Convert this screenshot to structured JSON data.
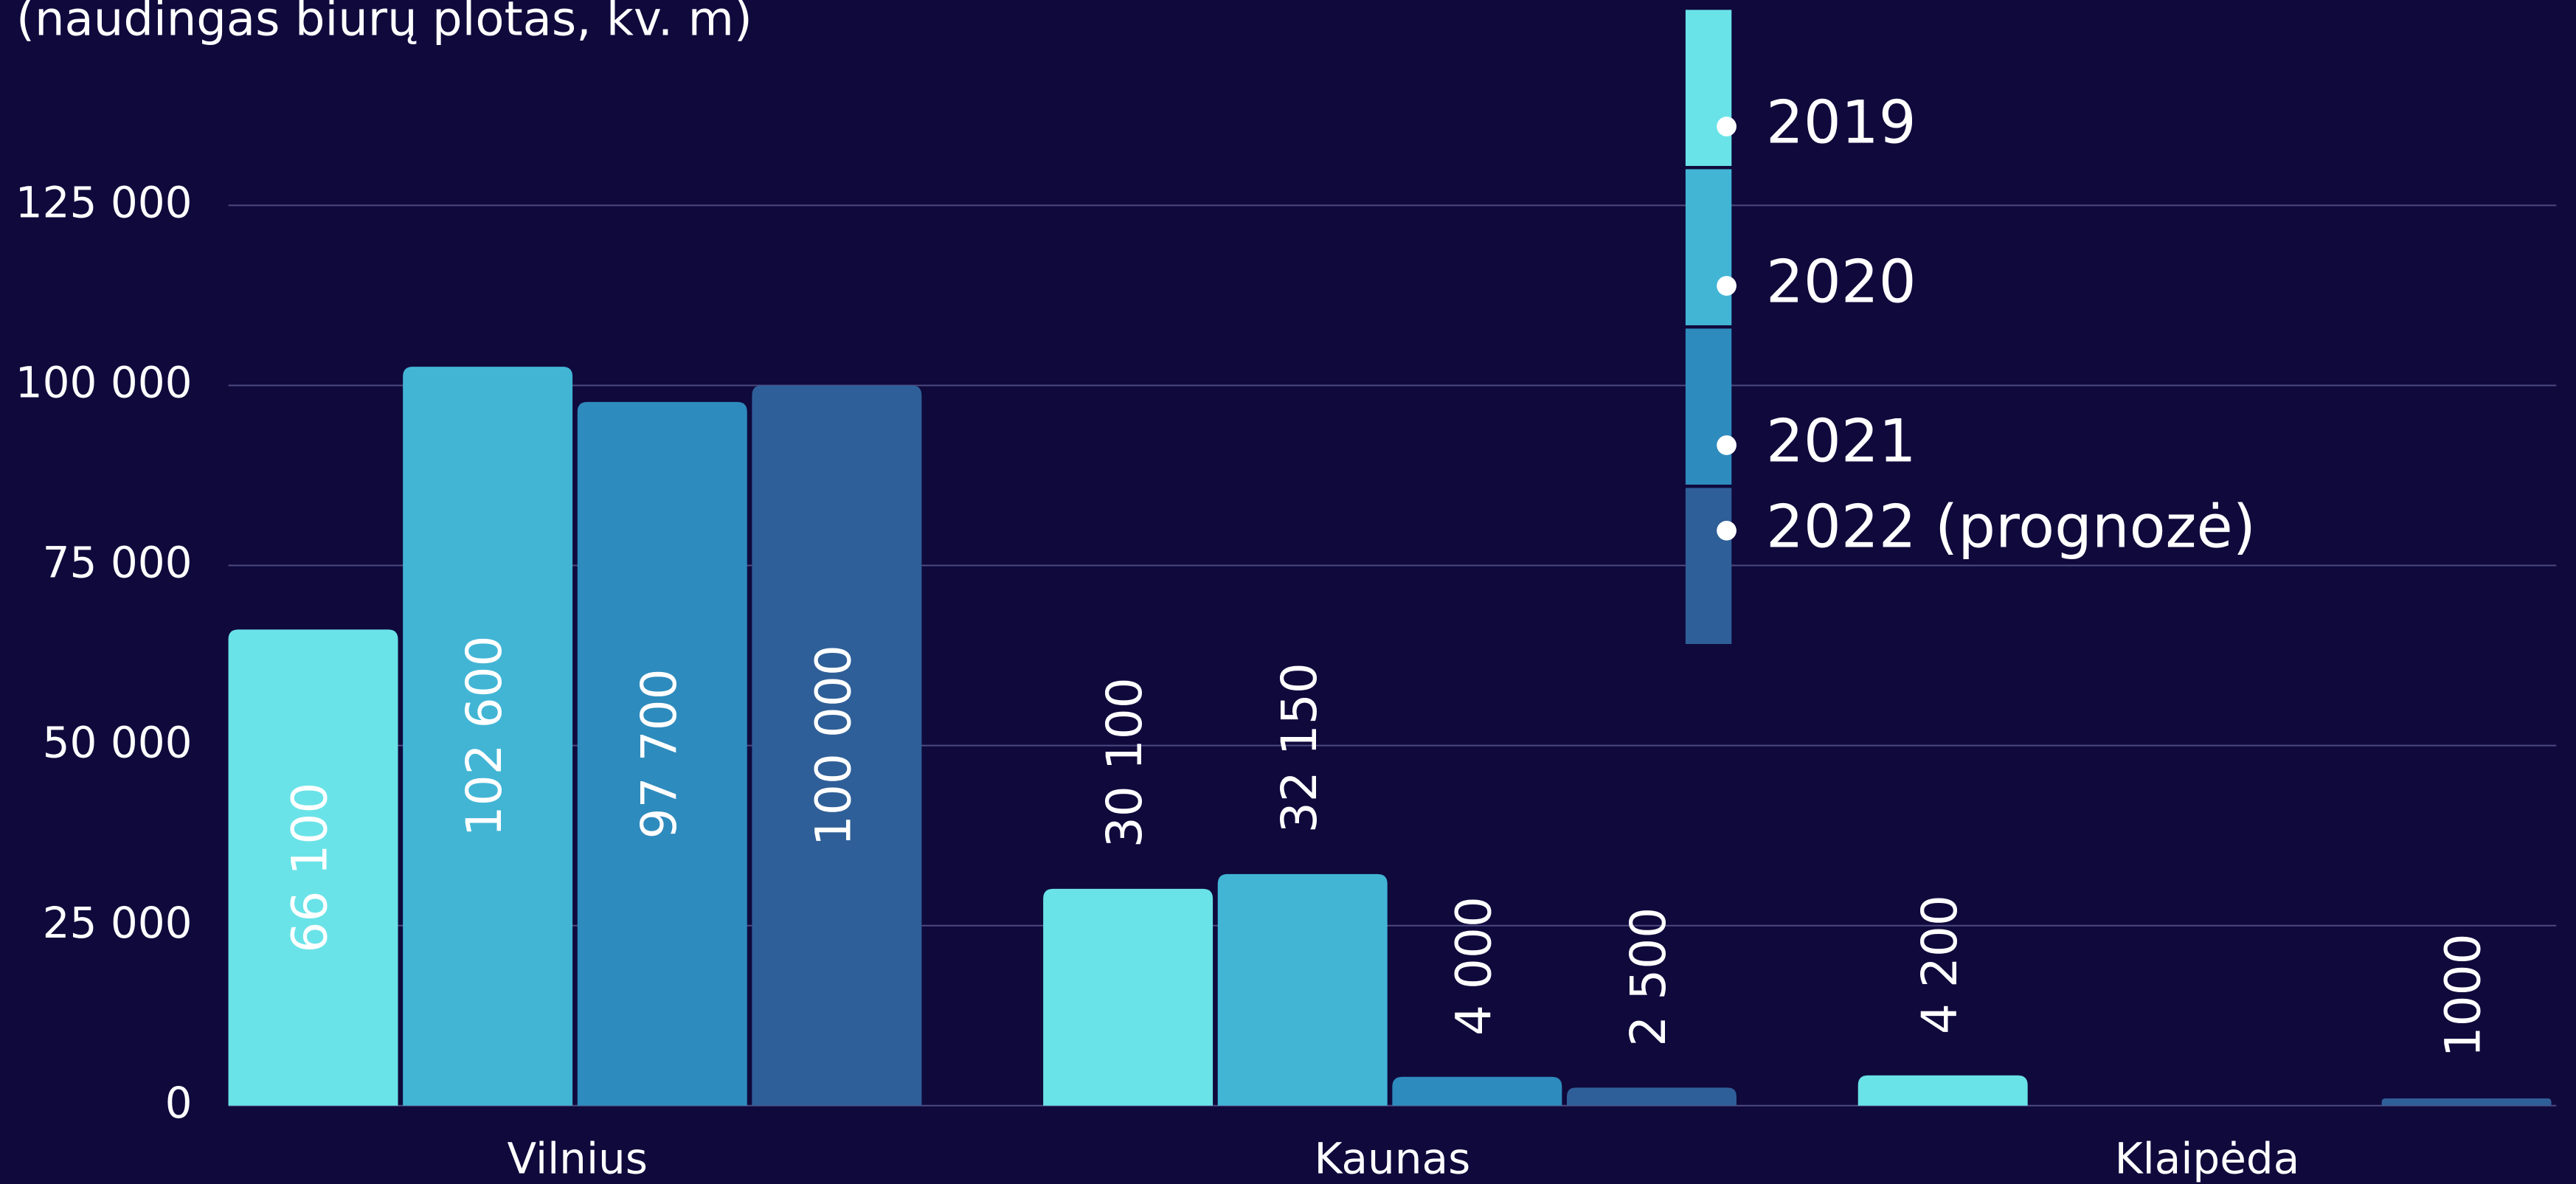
{
  "chart_data": {
    "type": "bar",
    "title": "(naudingas biurų plotas, kv. m)",
    "categories": [
      "Vilnius",
      "Kaunas",
      "Klaipėda"
    ],
    "series": [
      {
        "name": "2019",
        "color": "#6ae3e8",
        "values": [
          66100,
          30100,
          4200
        ],
        "value_labels": [
          "66 100",
          "30 100",
          "4 200"
        ]
      },
      {
        "name": "2020",
        "color": "#42b5d5",
        "values": [
          102600,
          32150,
          null
        ],
        "value_labels": [
          "102 600",
          "32 150",
          null
        ]
      },
      {
        "name": "2021",
        "color": "#2e8bbd",
        "values": [
          97700,
          4000,
          null
        ],
        "value_labels": [
          "97 700",
          "4 000",
          null
        ]
      },
      {
        "name": "2022 (prognozė)",
        "color": "#2f5f98",
        "values": [
          100000,
          2500,
          1000
        ],
        "value_labels": [
          "100 000",
          "2 500",
          "1000"
        ]
      }
    ],
    "ylim": [
      0,
      125000
    ],
    "yticks": [
      {
        "value": 0,
        "label": "0"
      },
      {
        "value": 25000,
        "label": "25 000"
      },
      {
        "value": 50000,
        "label": "50 000"
      },
      {
        "value": 75000,
        "label": "75 000"
      },
      {
        "value": 100000,
        "label": "100 000"
      },
      {
        "value": 125000,
        "label": "125 000"
      }
    ],
    "grid": true
  }
}
